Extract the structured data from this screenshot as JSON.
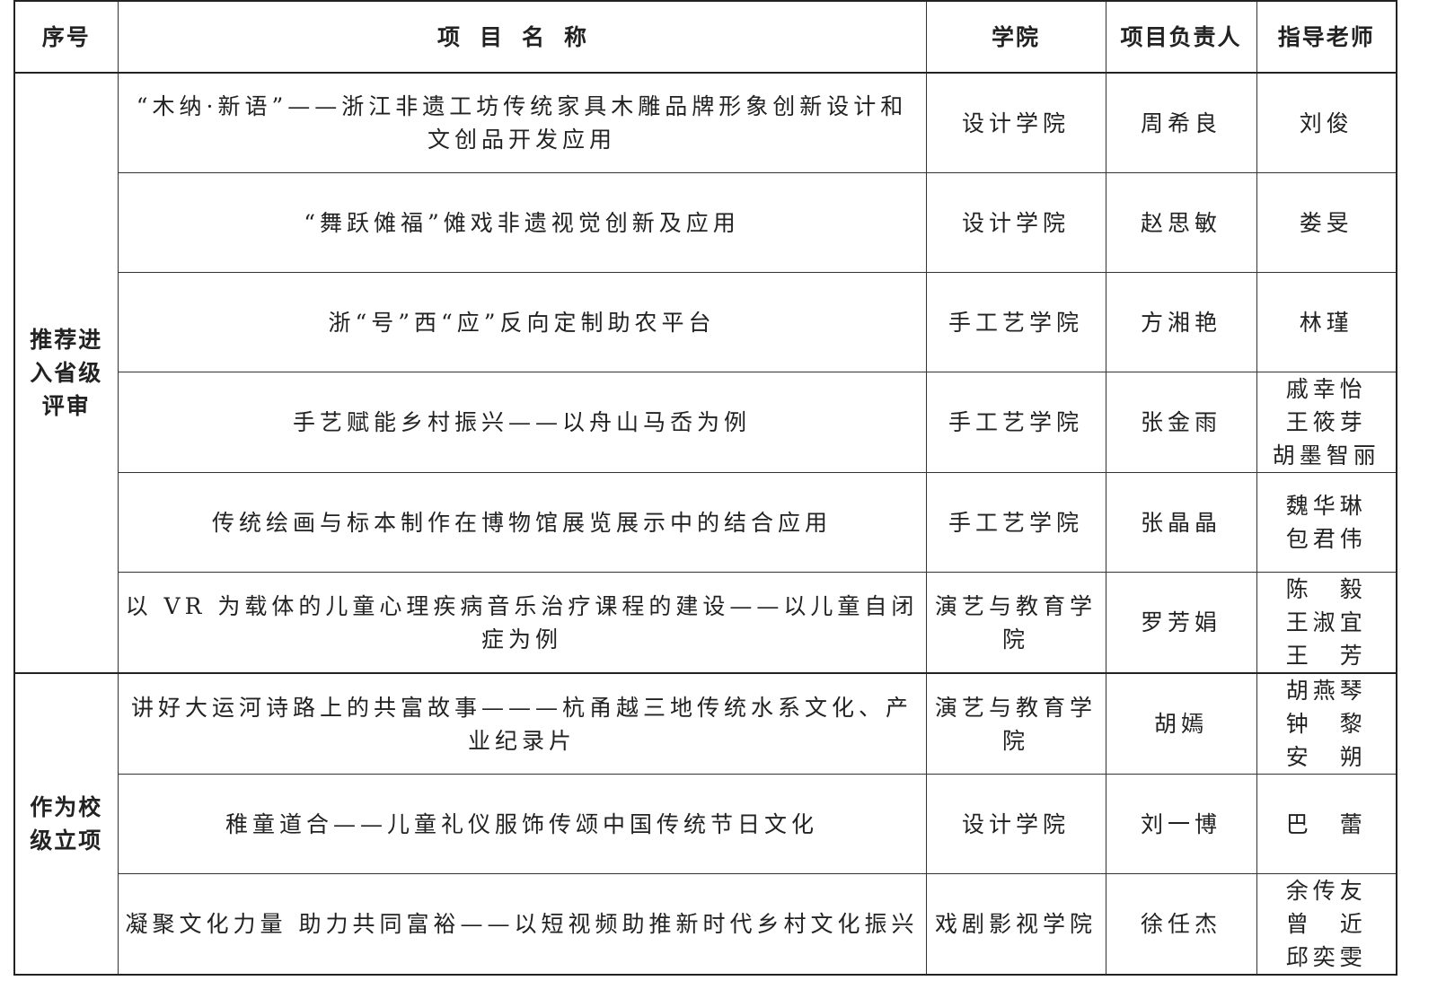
{
  "headers": [
    "序号",
    "项目名称",
    "学院",
    "项目负责人",
    "指导老师"
  ],
  "groups": [
    {
      "label": "推荐进入省级评审",
      "rows": [
        {
          "name": "“木纳·新语”——浙江非遗工坊传统家具木雕品牌形象创新设计和文创品开发应用",
          "college": "设计学院",
          "leader": "周希良",
          "advisor": "刘俊"
        },
        {
          "name": "“舞跃傩福”傩戏非遗视觉创新及应用",
          "college": "设计学院",
          "leader": "赵思敏",
          "advisor": "娄旻"
        },
        {
          "name": "浙“号”西“应”反向定制助农平台",
          "college": "手工艺学院",
          "leader": "方湘艳",
          "advisor": "林瑾"
        },
        {
          "name": "手艺赋能乡村振兴——以舟山马岙为例",
          "college": "手工艺学院",
          "leader": "张金雨",
          "advisor": "戚幸怡\n王筱芽\n胡墨智丽"
        },
        {
          "name": "传统绘画与标本制作在博物馆展览展示中的结合应用",
          "college": "手工艺学院",
          "leader": "张晶晶",
          "advisor": "魏华琳\n包君伟"
        },
        {
          "name": "以 VR 为载体的儿童心理疾病音乐治疗课程的建设——以儿童自闭症为例",
          "college": "演艺与教育学院",
          "leader": "罗芳娟",
          "advisor": "陈　毅\n王淑宜\n王　芳"
        }
      ]
    },
    {
      "label": "作为校级立项",
      "rows": [
        {
          "name": "讲好大运河诗路上的共富故事———杭甬越三地传统水系文化、产业纪录片",
          "college": "演艺与教育学院",
          "leader": "胡嫣",
          "advisor": "胡燕琴\n钟　黎\n安　朔"
        },
        {
          "name": "稚童道合——儿童礼仪服饰传颂中国传统节日文化",
          "college": "设计学院",
          "leader": "刘一博",
          "advisor": "巴　蕾"
        },
        {
          "name": "凝聚文化力量 助力共同富裕——以短视频助推新时代乡村文化振兴",
          "college": "戏剧影视学院",
          "leader": "徐任杰",
          "advisor": "余传友\n曾　近\n邱奕雯"
        }
      ]
    }
  ]
}
